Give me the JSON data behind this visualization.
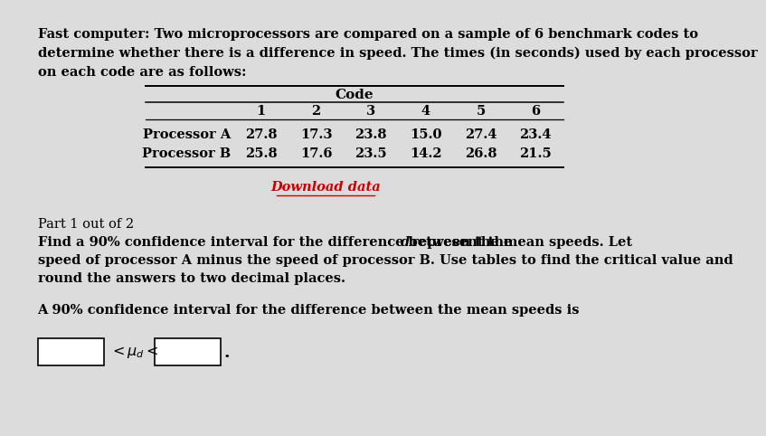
{
  "title_line1": "Fast computer: Two microprocessors are compared on a sample of 6 benchmark codes to",
  "title_line2": "determine whether there is a difference in speed. The times (in seconds) used by each processor",
  "title_line3": "on each code are as follows:",
  "table_header": "Code",
  "col_labels": [
    "1",
    "2",
    "3",
    "4",
    "5",
    "6"
  ],
  "row_labels": [
    "Processor A",
    "Processor B"
  ],
  "data_A": [
    "27.8",
    "17.3",
    "23.8",
    "15.0",
    "27.4",
    "23.4"
  ],
  "data_B": [
    "25.8",
    "17.6",
    "23.5",
    "14.2",
    "26.8",
    "21.5"
  ],
  "download_text": "Download data",
  "download_color": "#cc0000",
  "part_text": "Part 1 out of 2",
  "q_line1": "Find a 90% confidence interval for the difference between the mean speeds. Let ",
  "q_d": "d",
  "q_line1b": " represent the",
  "q_line2": "speed of processor A minus the speed of processor B. Use tables to find the critical value and",
  "q_line3": "round the answers to two decimal places.",
  "answer_text": "A 90% confidence interval for the difference between the mean speeds is",
  "mu_label": "<μ",
  "d_label": "d",
  "lt_label": " <",
  "bg_color": "#dcdcdc",
  "text_color": "#000000",
  "title_fs": 10.5,
  "table_fs": 10.5,
  "body_fs": 10.5
}
